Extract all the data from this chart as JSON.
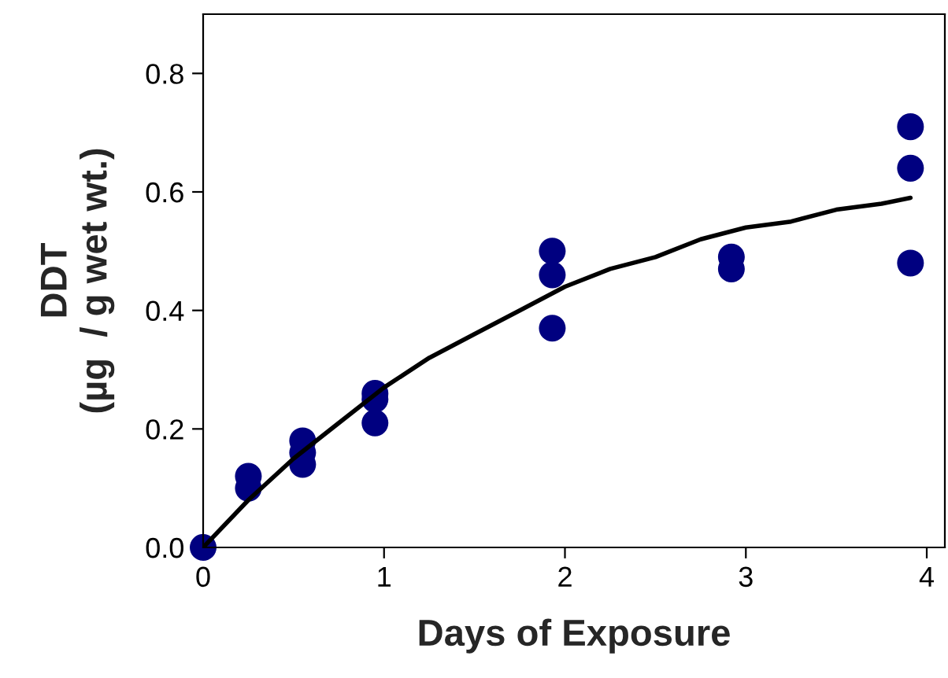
{
  "chart_data": {
    "type": "scatter",
    "xlabel": "Days of Exposure",
    "ylabel": "DDT\n(µg  / g wet wt.)",
    "xlim": [
      0,
      4.1
    ],
    "ylim": [
      0,
      0.9
    ],
    "xticks": [
      0,
      1,
      2,
      3,
      4
    ],
    "yticks": [
      {
        "value": 0,
        "label": "0.0"
      },
      {
        "value": 0.2,
        "label": "0.2"
      },
      {
        "value": 0.4,
        "label": "0.4"
      },
      {
        "value": 0.6,
        "label": "0.6"
      },
      {
        "value": 0.8,
        "label": "0.8"
      }
    ],
    "grid": false,
    "legend": false,
    "series": [
      {
        "color": "#000080",
        "marker": "circle",
        "x": [
          0,
          0.25,
          0.25,
          0.55,
          0.55,
          0.55,
          0.95,
          0.95,
          0.95,
          1.93,
          1.93,
          1.93,
          2.92,
          2.92,
          3.91,
          3.91,
          3.91
        ],
        "values": [
          0,
          0.12,
          0.1,
          0.18,
          0.16,
          0.14,
          0.26,
          0.25,
          0.21,
          0.5,
          0.46,
          0.37,
          0.49,
          0.47,
          0.71,
          0.64,
          0.48
        ]
      },
      {
        "type": "line",
        "color": "#000000",
        "line_style": "solid",
        "x": [
          0,
          0.25,
          0.5,
          0.75,
          1.0,
          1.25,
          1.5,
          1.75,
          2.0,
          2.25,
          2.5,
          2.75,
          3.0,
          3.25,
          3.5,
          3.75,
          3.91
        ],
        "values": [
          0,
          0.08,
          0.15,
          0.21,
          0.27,
          0.32,
          0.36,
          0.4,
          0.44,
          0.47,
          0.49,
          0.52,
          0.54,
          0.55,
          0.57,
          0.58,
          0.59
        ]
      }
    ]
  }
}
